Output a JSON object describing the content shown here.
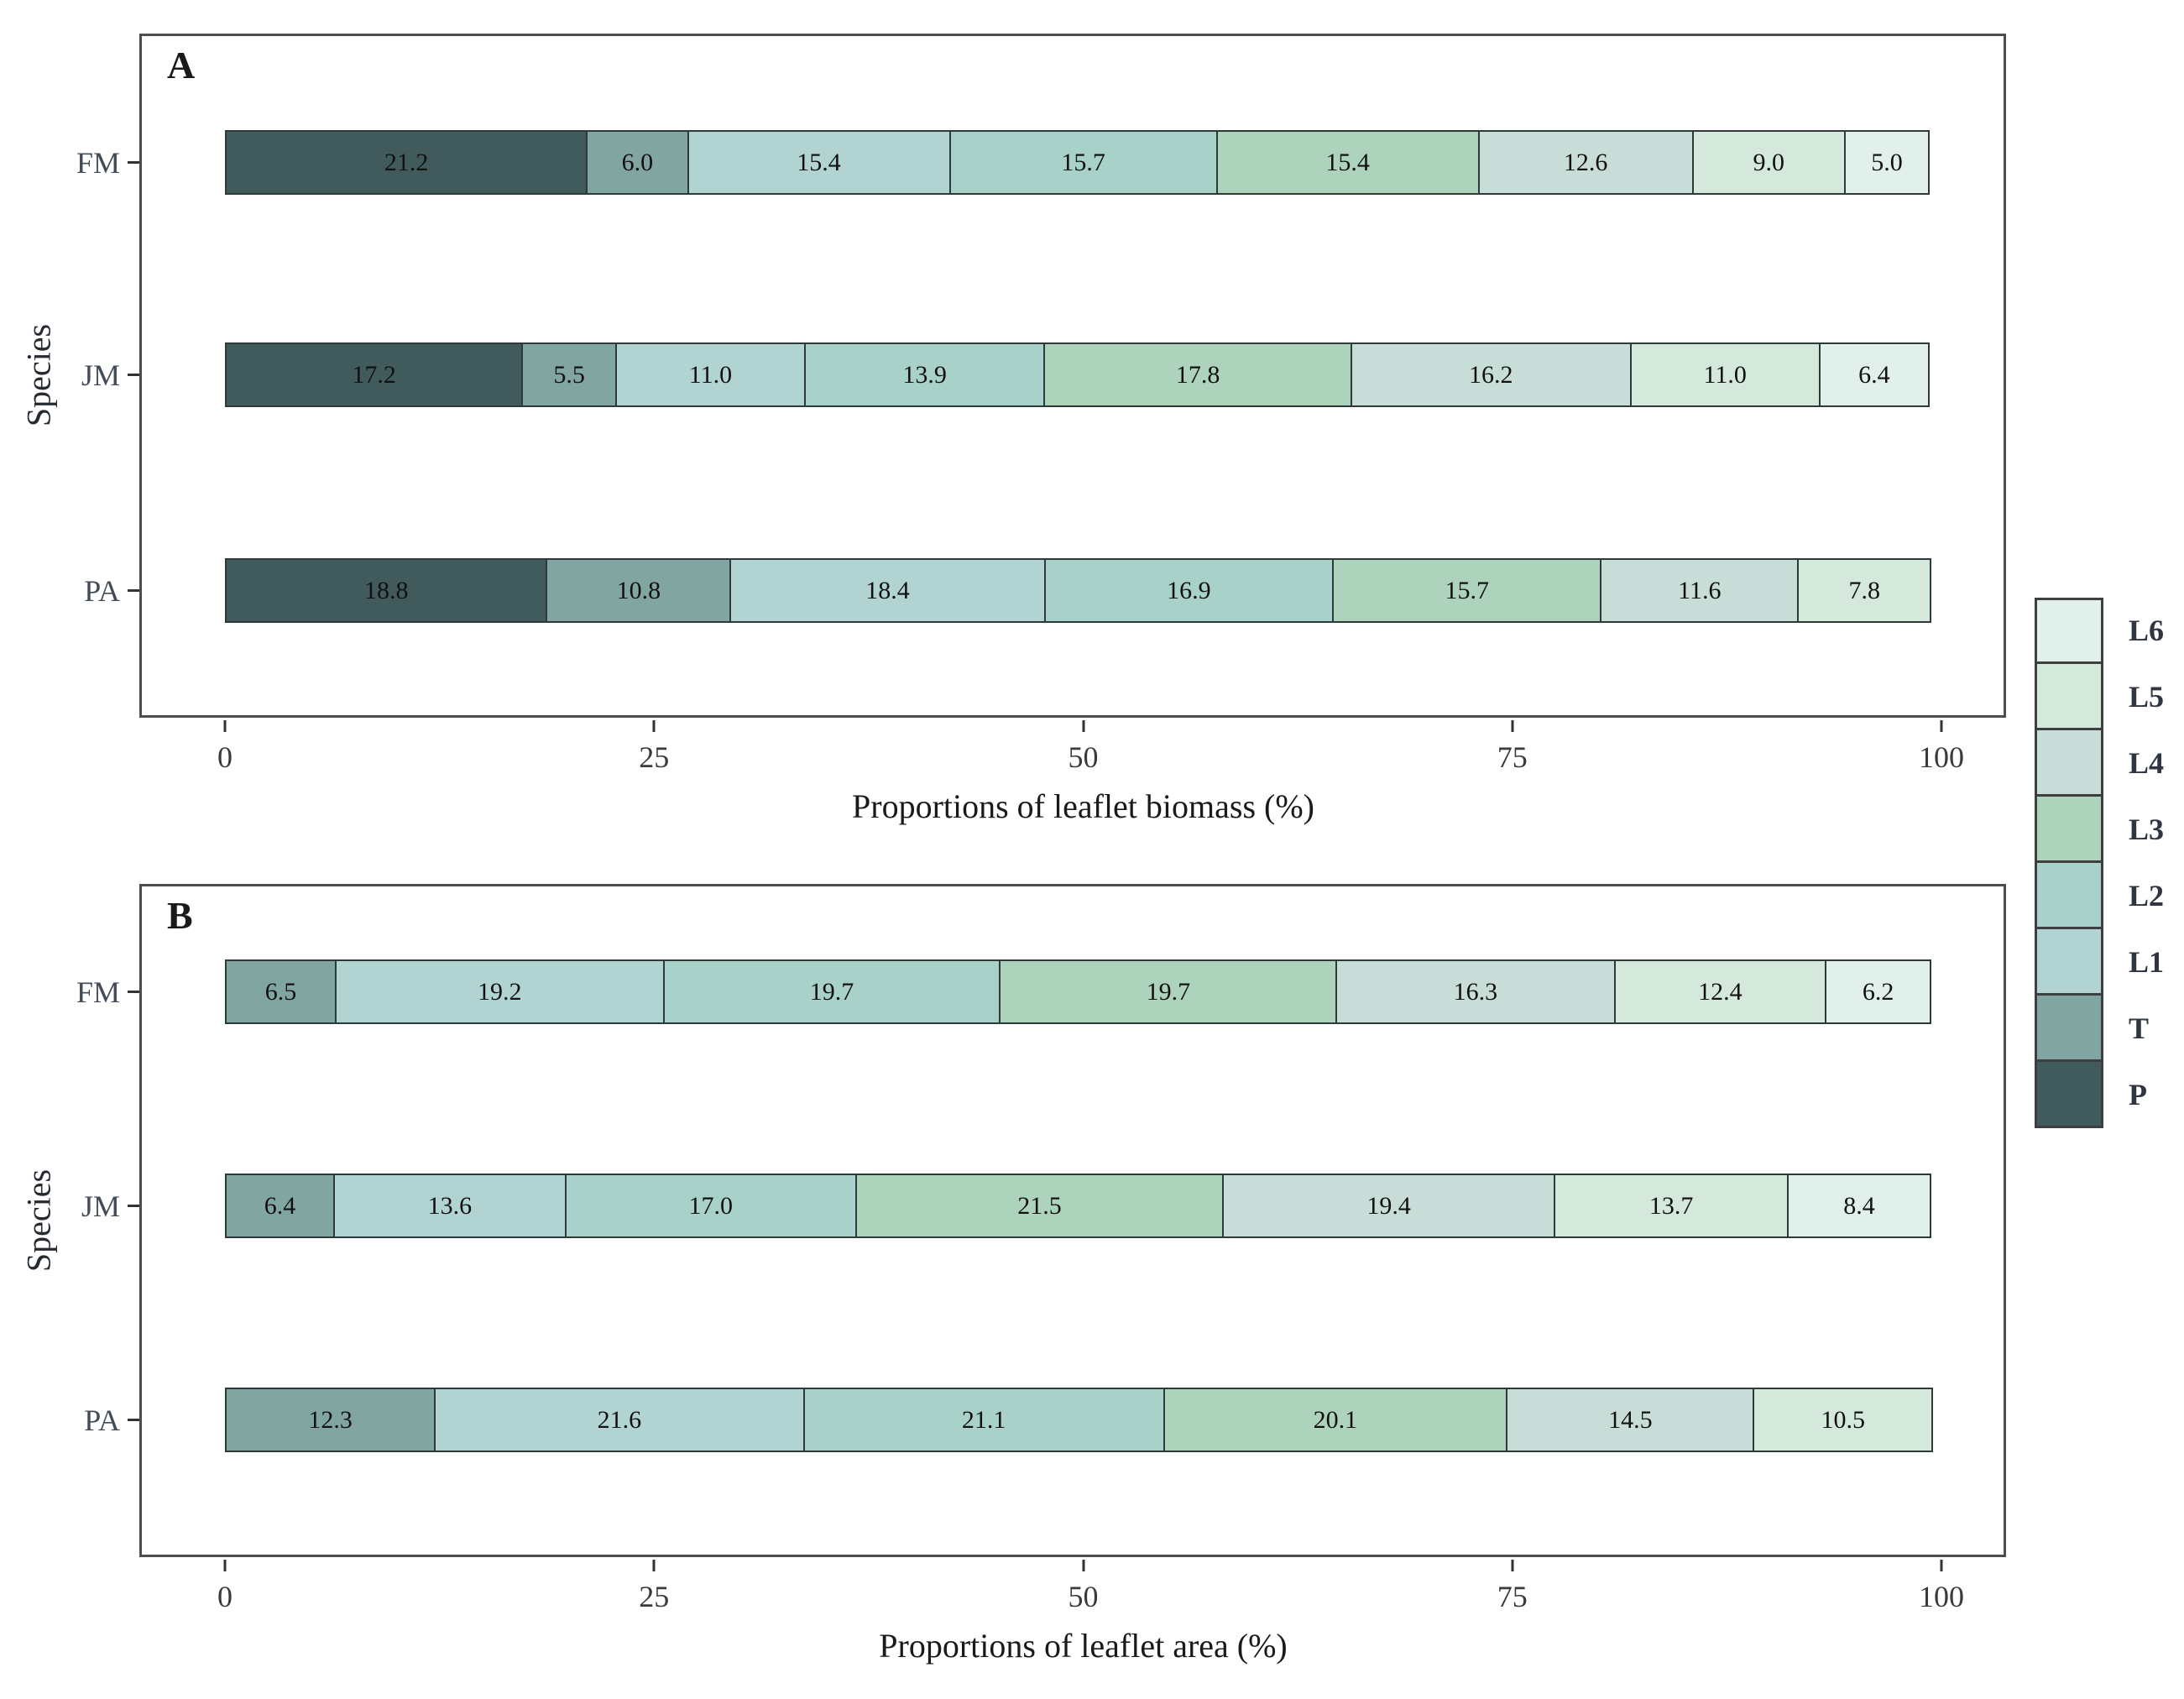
{
  "figure": {
    "panel_a_label": "A",
    "panel_b_label": "B"
  },
  "colors": {
    "P": "#415b5c",
    "T": "#81a6a2",
    "L1": "#b1d4d3",
    "L2": "#a8d1c9",
    "L3": "#aed3bd",
    "L4": "#c8ddd7",
    "L5": "#d4e8db",
    "L6": "#e1f0ea"
  },
  "legend": {
    "entries": [
      {
        "label": "L6"
      },
      {
        "label": "L5"
      },
      {
        "label": "L4"
      },
      {
        "label": "L3"
      },
      {
        "label": "L2"
      },
      {
        "label": "L1"
      },
      {
        "label": "T"
      },
      {
        "label": "P"
      }
    ]
  },
  "chart_data": [
    {
      "panel": "A",
      "type": "bar",
      "orientation": "horizontal",
      "stacked": true,
      "xlabel": "Proportions of leaflet biomass (%)",
      "ylabel": "Species",
      "xlim": [
        0,
        100
      ],
      "xticks": [
        "0",
        "25",
        "50",
        "75",
        "100"
      ],
      "categories": [
        "FM",
        "JM",
        "PA"
      ],
      "stack_order": [
        "P",
        "T",
        "L1",
        "L2",
        "L3",
        "L4",
        "L5",
        "L6"
      ],
      "series": [
        {
          "name": "P",
          "values": [
            21.2,
            17.2,
            18.8
          ]
        },
        {
          "name": "T",
          "values": [
            6.0,
            5.5,
            10.8
          ]
        },
        {
          "name": "L1",
          "values": [
            15.4,
            11.0,
            18.4
          ]
        },
        {
          "name": "L2",
          "values": [
            15.7,
            13.9,
            16.9
          ]
        },
        {
          "name": "L3",
          "values": [
            15.4,
            17.8,
            15.7
          ]
        },
        {
          "name": "L4",
          "values": [
            12.6,
            16.2,
            11.6
          ]
        },
        {
          "name": "L5",
          "values": [
            9.0,
            11.0,
            7.8
          ]
        },
        {
          "name": "L6",
          "values": [
            5.0,
            6.4,
            null
          ]
        }
      ]
    },
    {
      "panel": "B",
      "type": "bar",
      "orientation": "horizontal",
      "stacked": true,
      "xlabel": "Proportions of leaflet area (%)",
      "ylabel": "Species",
      "xlim": [
        0,
        100
      ],
      "xticks": [
        "0",
        "25",
        "50",
        "75",
        "100"
      ],
      "categories": [
        "FM",
        "JM",
        "PA"
      ],
      "stack_order": [
        "T",
        "L1",
        "L2",
        "L3",
        "L4",
        "L5",
        "L6"
      ],
      "series": [
        {
          "name": "T",
          "values": [
            6.5,
            6.4,
            12.3
          ]
        },
        {
          "name": "L1",
          "values": [
            19.2,
            13.6,
            21.6
          ]
        },
        {
          "name": "L2",
          "values": [
            19.7,
            17.0,
            21.1
          ]
        },
        {
          "name": "L3",
          "values": [
            19.7,
            21.5,
            20.1
          ]
        },
        {
          "name": "L4",
          "values": [
            16.3,
            19.4,
            14.5
          ]
        },
        {
          "name": "L5",
          "values": [
            12.4,
            13.7,
            10.5
          ]
        },
        {
          "name": "L6",
          "values": [
            6.2,
            8.4,
            null
          ]
        }
      ]
    }
  ]
}
